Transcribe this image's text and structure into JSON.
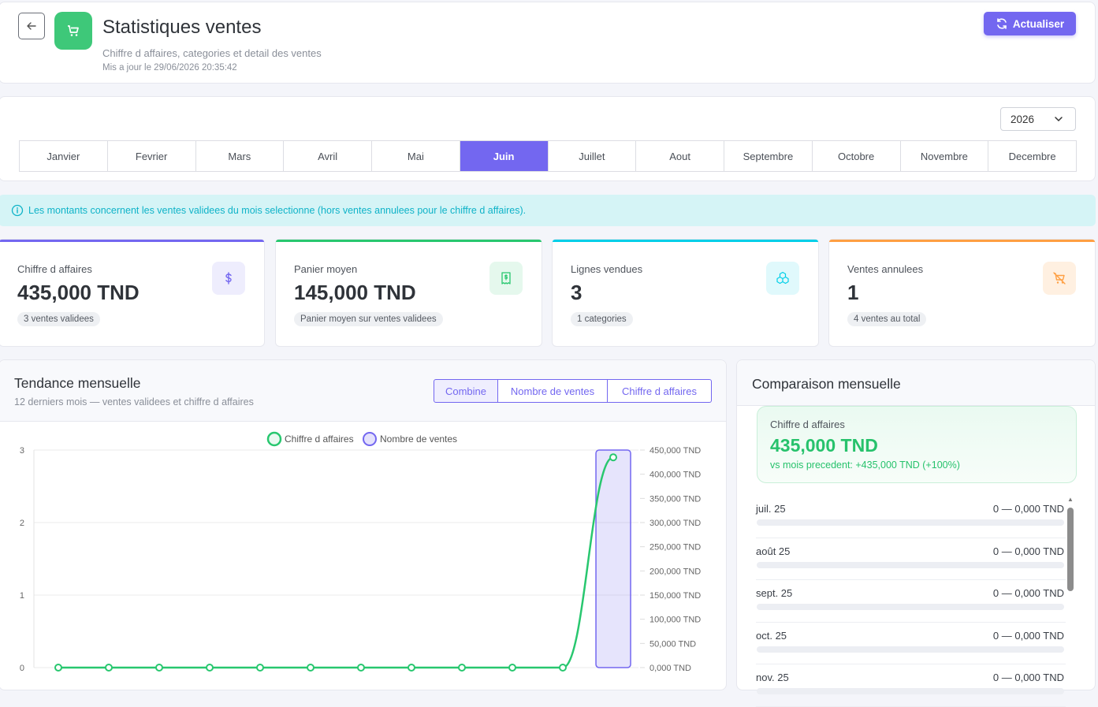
{
  "header": {
    "title": "Statistiques ventes",
    "subtitle": "Chiffre d affaires, categories et detail des ventes",
    "updated": "Mis a jour le 29/06/2026 20:35:42",
    "refresh_label": "Actualiser"
  },
  "filters": {
    "year": "2026",
    "months": [
      "Janvier",
      "Fevrier",
      "Mars",
      "Avril",
      "Mai",
      "Juin",
      "Juillet",
      "Aout",
      "Septembre",
      "Octobre",
      "Novembre",
      "Decembre"
    ],
    "active_month": "Juin"
  },
  "info": "Les montants concernent les ventes validees du mois selectionne (hors ventes annulees pour le chiffre d affaires).",
  "kpis": [
    {
      "label": "Chiffre d affaires",
      "value": "435,000 TND",
      "pill": "3 ventes validees",
      "color": "#7367f0",
      "icon": "dollar-icon"
    },
    {
      "label": "Panier moyen",
      "value": "145,000 TND",
      "pill": "Panier moyen sur ventes validees",
      "color": "#28c76f",
      "icon": "receipt-icon"
    },
    {
      "label": "Lignes vendues",
      "value": "3",
      "pill": "1 categories",
      "color": "#00cfe8",
      "icon": "boxes-icon"
    },
    {
      "label": "Ventes annulees",
      "value": "1",
      "pill": "4 ventes au total",
      "color": "#ff9f43",
      "icon": "cart-off-icon"
    }
  ],
  "trend": {
    "title": "Tendance mensuelle",
    "subtitle": "12 derniers mois — ventes validees et chiffre d affaires",
    "views": [
      "Combine",
      "Nombre de ventes",
      "Chiffre d affaires"
    ],
    "active_view": "Combine"
  },
  "chart_data": {
    "type": "bar",
    "series": [
      {
        "name": "Chiffre d affaires",
        "kind": "line",
        "axis": "right",
        "color": "#28c76f",
        "values": [
          0,
          0,
          0,
          0,
          0,
          0,
          0,
          0,
          0,
          0,
          0,
          435000
        ]
      },
      {
        "name": "Nombre de ventes",
        "kind": "bar",
        "axis": "left",
        "color": "#7367f0",
        "values": [
          0,
          0,
          0,
          0,
          0,
          0,
          0,
          0,
          0,
          0,
          0,
          3
        ]
      }
    ],
    "y_left": {
      "min": 0,
      "max": 3,
      "ticks": [
        "0",
        "1",
        "2",
        "3"
      ]
    },
    "y_right": {
      "min": 0,
      "max": 450000,
      "ticks": [
        "0,000 TND",
        "50,000 TND",
        "100,000 TND",
        "150,000 TND",
        "200,000 TND",
        "250,000 TND",
        "300,000 TND",
        "350,000 TND",
        "400,000 TND",
        "450,000 TND"
      ]
    },
    "legend": "top",
    "grid": true
  },
  "comparison": {
    "title": "Comparaison mensuelle",
    "summary_label": "Chiffre d affaires",
    "summary_value": "435,000 TND",
    "summary_delta": "vs mois precedent: +435,000 TND (+100%)",
    "rows": [
      {
        "month": "juil. 25",
        "value": "0 — 0,000 TND"
      },
      {
        "month": "août 25",
        "value": "0 — 0,000 TND"
      },
      {
        "month": "sept. 25",
        "value": "0 — 0,000 TND"
      },
      {
        "month": "oct. 25",
        "value": "0 — 0,000 TND"
      },
      {
        "month": "nov. 25",
        "value": "0 — 0,000 TND"
      }
    ]
  }
}
